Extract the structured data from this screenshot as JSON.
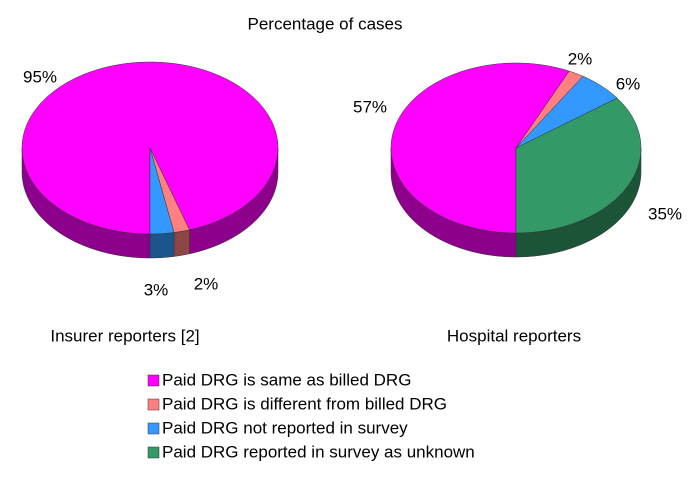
{
  "title": "Percentage of cases",
  "chart_data": [
    {
      "type": "pie",
      "subtitle": "Insurer reporters [2]",
      "categories": [
        "Paid DRG is same as billed DRG",
        "Paid DRG is different from billed DRG",
        "Paid DRG not reported in survey"
      ],
      "values": [
        95,
        2,
        3
      ],
      "value_labels": [
        "95%",
        "2%",
        "3%"
      ],
      "colors": [
        "#ff00ff",
        "#ff8080",
        "#3399ff"
      ]
    },
    {
      "type": "pie",
      "subtitle": "Hospital reporters",
      "categories": [
        "Paid DRG is same as billed DRG",
        "Paid DRG is different from billed DRG",
        "Paid DRG not reported in survey",
        "Paid DRG reported in survey as unknown"
      ],
      "values": [
        57,
        2,
        6,
        35
      ],
      "value_labels": [
        "57%",
        "2%",
        "6%",
        "35%"
      ],
      "colors": [
        "#ff00ff",
        "#ff8080",
        "#3399ff",
        "#339966"
      ]
    }
  ]
}
